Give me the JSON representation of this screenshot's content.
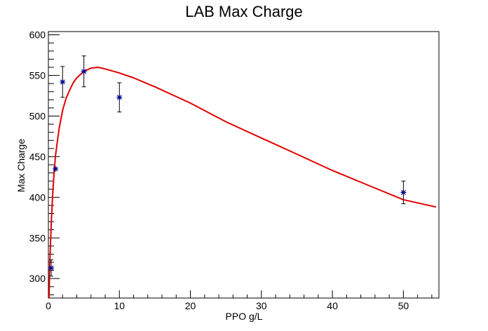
{
  "chart_data": {
    "type": "scatter",
    "title": "LAB Max Charge",
    "xlabel": "PPO g/L",
    "ylabel": "Max Charge",
    "xlim": [
      0,
      55
    ],
    "ylim": [
      276,
      604
    ],
    "x_ticks": [
      0,
      10,
      20,
      30,
      40,
      50
    ],
    "y_ticks": [
      300,
      350,
      400,
      450,
      500,
      550,
      600
    ],
    "x_tick_labels": [
      "0",
      "10",
      "20",
      "30",
      "40",
      "50"
    ],
    "y_tick_labels": [
      "300",
      "350",
      "400",
      "450",
      "500",
      "550",
      "600"
    ],
    "grid": false,
    "series": [
      {
        "type": "points",
        "marker": "star",
        "color": "#00008b",
        "errorbar_color": "#000000",
        "x": [
          0.4,
          1.0,
          2.0,
          5.0,
          10.0,
          50.0
        ],
        "y": [
          313,
          435,
          542,
          555,
          523,
          406
        ],
        "yerr": [
          10,
          0,
          19,
          19,
          18,
          14
        ]
      },
      {
        "type": "fit_curve",
        "color": "#e00000",
        "x": [
          0.1,
          0.2,
          0.4,
          0.6,
          0.8,
          1.0,
          1.5,
          2.0,
          2.5,
          3.0,
          3.5,
          4.0,
          5.0,
          6.0,
          7.0,
          8.0,
          10.0,
          12.0,
          15.0,
          20.0,
          25.0,
          30.0,
          35.0,
          40.0,
          45.0,
          50.0,
          54.6
        ],
        "y": [
          276,
          318,
          368,
          403,
          430,
          451,
          484,
          507,
          522,
          532,
          541,
          547,
          555,
          559,
          560,
          558,
          553,
          547,
          536,
          516,
          493,
          473,
          453,
          433,
          415,
          397,
          388
        ]
      }
    ]
  }
}
